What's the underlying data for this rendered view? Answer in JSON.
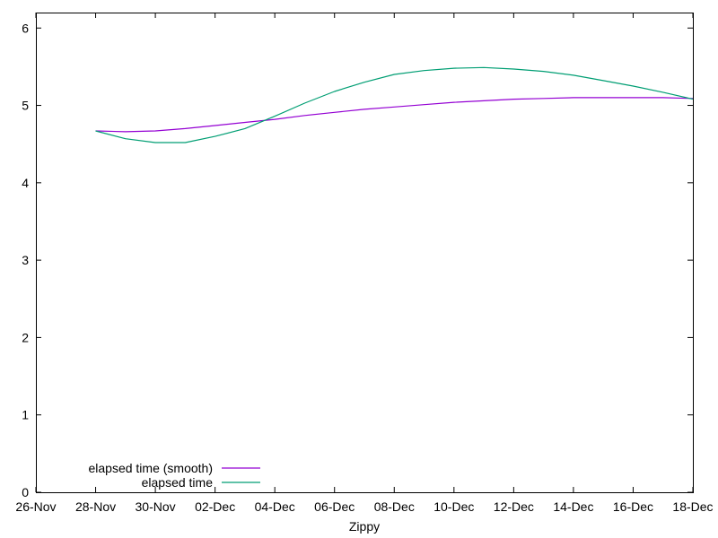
{
  "chart_data": {
    "type": "line",
    "title": "",
    "xlabel": "Zippy",
    "ylabel": "",
    "x_ticks": [
      "26-Nov",
      "28-Nov",
      "30-Nov",
      "02-Dec",
      "04-Dec",
      "06-Dec",
      "08-Dec",
      "10-Dec",
      "12-Dec",
      "14-Dec",
      "16-Dec",
      "18-Dec"
    ],
    "y_ticks": [
      "0",
      "1",
      "2",
      "3",
      "4",
      "5",
      "6"
    ],
    "xlim": [
      "26-Nov",
      "18-Dec"
    ],
    "ylim": [
      0,
      6.2
    ],
    "grid": false,
    "legend_position": "bottom-left",
    "series": [
      {
        "name": "elapsed time (smooth)",
        "color": "#9400d3",
        "points": [
          {
            "x": "28-Nov",
            "y": 4.67
          },
          {
            "x": "29-Nov",
            "y": 4.66
          },
          {
            "x": "30-Nov",
            "y": 4.67
          },
          {
            "x": "01-Dec",
            "y": 4.7
          },
          {
            "x": "02-Dec",
            "y": 4.74
          },
          {
            "x": "03-Dec",
            "y": 4.78
          },
          {
            "x": "04-Dec",
            "y": 4.82
          },
          {
            "x": "05-Dec",
            "y": 4.87
          },
          {
            "x": "06-Dec",
            "y": 4.91
          },
          {
            "x": "07-Dec",
            "y": 4.95
          },
          {
            "x": "08-Dec",
            "y": 4.98
          },
          {
            "x": "09-Dec",
            "y": 5.01
          },
          {
            "x": "10-Dec",
            "y": 5.04
          },
          {
            "x": "11-Dec",
            "y": 5.06
          },
          {
            "x": "12-Dec",
            "y": 5.08
          },
          {
            "x": "13-Dec",
            "y": 5.09
          },
          {
            "x": "14-Dec",
            "y": 5.1
          },
          {
            "x": "15-Dec",
            "y": 5.1
          },
          {
            "x": "16-Dec",
            "y": 5.1
          },
          {
            "x": "17-Dec",
            "y": 5.1
          },
          {
            "x": "18-Dec",
            "y": 5.09
          }
        ]
      },
      {
        "name": "elapsed time",
        "color": "#009e73",
        "points": [
          {
            "x": "28-Nov",
            "y": 4.67
          },
          {
            "x": "29-Nov",
            "y": 4.57
          },
          {
            "x": "30-Nov",
            "y": 4.52
          },
          {
            "x": "01-Dec",
            "y": 4.52
          },
          {
            "x": "02-Dec",
            "y": 4.6
          },
          {
            "x": "03-Dec",
            "y": 4.7
          },
          {
            "x": "04-Dec",
            "y": 4.86
          },
          {
            "x": "05-Dec",
            "y": 5.03
          },
          {
            "x": "06-Dec",
            "y": 5.18
          },
          {
            "x": "07-Dec",
            "y": 5.3
          },
          {
            "x": "08-Dec",
            "y": 5.4
          },
          {
            "x": "09-Dec",
            "y": 5.45
          },
          {
            "x": "10-Dec",
            "y": 5.48
          },
          {
            "x": "11-Dec",
            "y": 5.49
          },
          {
            "x": "12-Dec",
            "y": 5.47
          },
          {
            "x": "13-Dec",
            "y": 5.44
          },
          {
            "x": "14-Dec",
            "y": 5.39
          },
          {
            "x": "15-Dec",
            "y": 5.32
          },
          {
            "x": "16-Dec",
            "y": 5.25
          },
          {
            "x": "17-Dec",
            "y": 5.17
          },
          {
            "x": "18-Dec",
            "y": 5.08
          }
        ]
      }
    ]
  }
}
